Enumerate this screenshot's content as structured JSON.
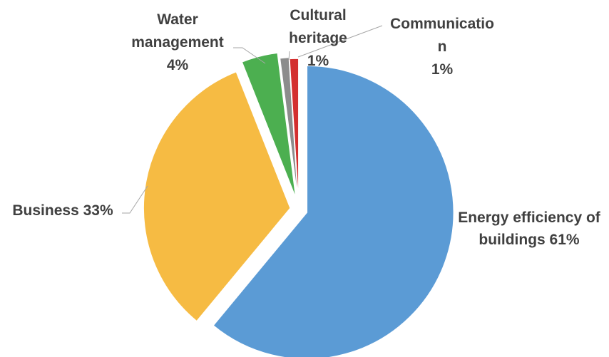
{
  "chart_data": {
    "type": "pie",
    "title": "",
    "slices": [
      {
        "name": "Energy efficiency of buildings",
        "value": 61,
        "color": "#5b9bd5",
        "label_lines": [
          "Energy efficiency of",
          "buildings 61%"
        ]
      },
      {
        "name": "Business",
        "value": 33,
        "color": "#f6bb43",
        "label_lines": [
          "Business 33%"
        ]
      },
      {
        "name": "Water management",
        "value": 4,
        "color": "#4caf50",
        "label_lines": [
          "Water",
          "management",
          "4%"
        ]
      },
      {
        "name": "Cultural heritage",
        "value": 1,
        "color": "#8c8c8c",
        "label_lines": [
          "Cultural",
          "heritage",
          "1%"
        ]
      },
      {
        "name": "Communication",
        "value": 1,
        "color": "#d32f2f",
        "label_lines": [
          "Communicatio",
          "n",
          "1%"
        ]
      }
    ],
    "legend": "none",
    "exploded": true
  }
}
